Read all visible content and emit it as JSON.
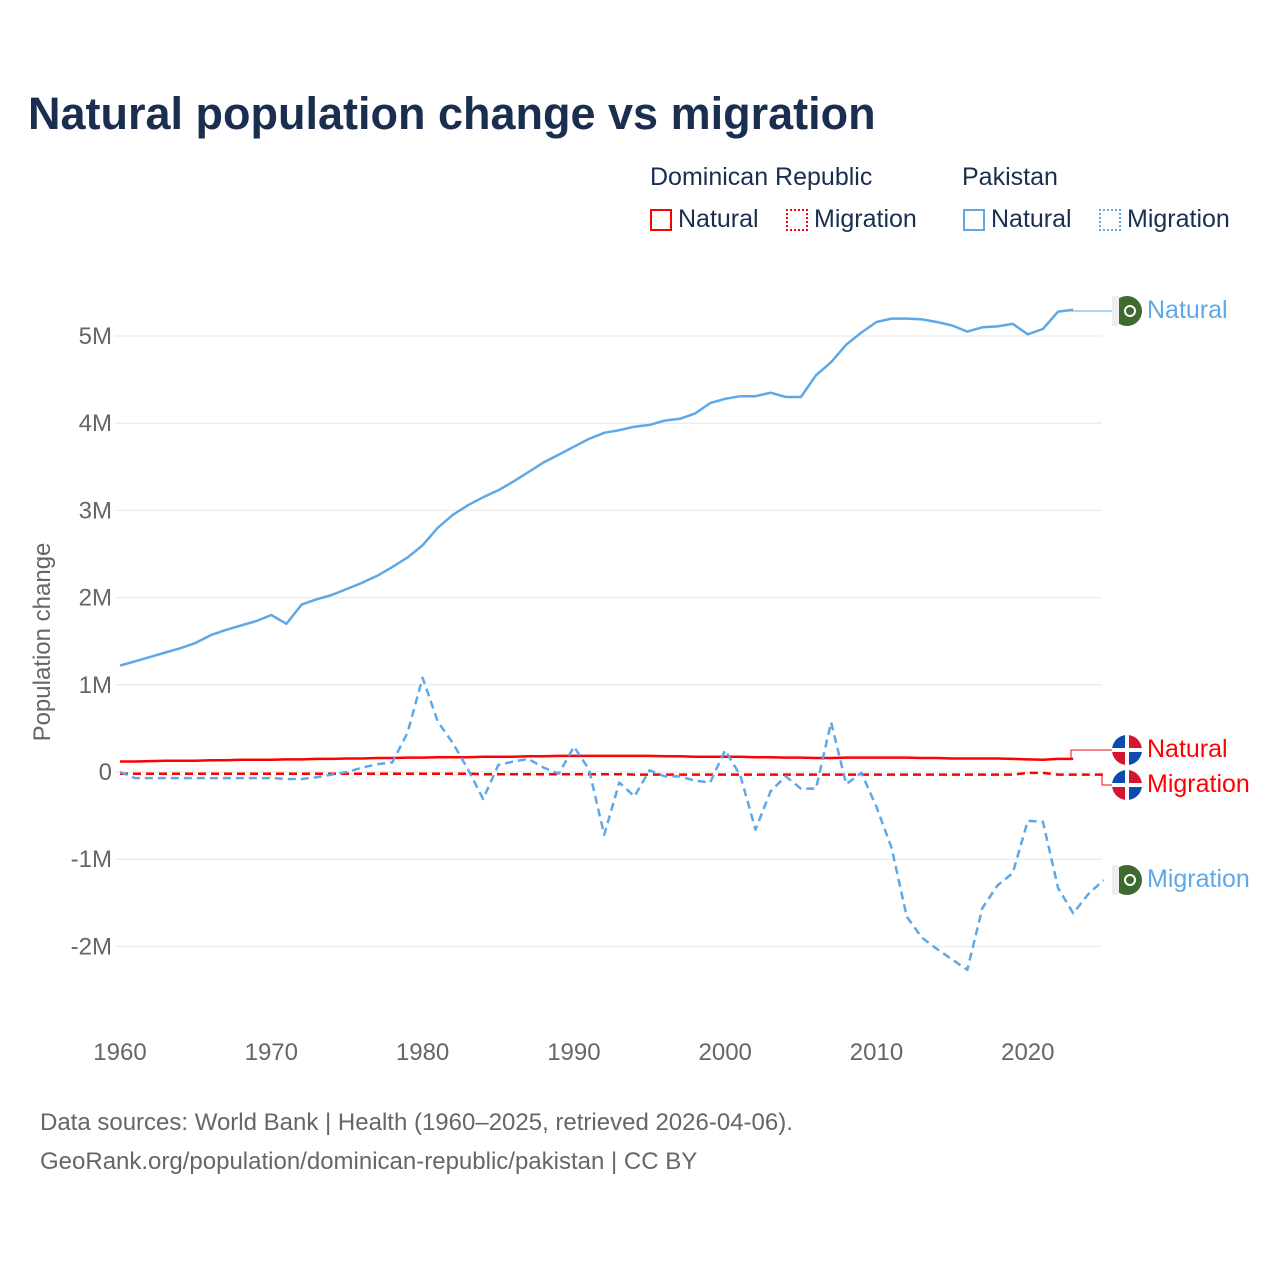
{
  "chart_data": {
    "type": "line",
    "title": "Natural population change vs migration",
    "ylabel": "Population change",
    "xlabel": "",
    "ylim": [
      -2.9,
      5.8
    ],
    "xlim": [
      1960,
      2025
    ],
    "y_unit": "millions",
    "yticks": [
      {
        "v": 5,
        "label": "5M"
      },
      {
        "v": 4,
        "label": "4M"
      },
      {
        "v": 3,
        "label": "3M"
      },
      {
        "v": 2,
        "label": "2M"
      },
      {
        "v": 1,
        "label": "1M"
      },
      {
        "v": 0,
        "label": "0"
      },
      {
        "v": -1,
        "label": "-1M"
      },
      {
        "v": -2,
        "label": "-2M"
      }
    ],
    "xticks": [
      {
        "v": 1960,
        "label": "1960"
      },
      {
        "v": 1970,
        "label": "1970"
      },
      {
        "v": 1980,
        "label": "1980"
      },
      {
        "v": 1990,
        "label": "1990"
      },
      {
        "v": 2000,
        "label": "2000"
      },
      {
        "v": 2010,
        "label": "2010"
      },
      {
        "v": 2020,
        "label": "2020"
      }
    ],
    "grid": true,
    "legend": {
      "groups": [
        {
          "name": "Dominican Republic",
          "items": [
            "Natural",
            "Migration"
          ]
        },
        {
          "name": "Pakistan",
          "items": [
            "Natural",
            "Migration"
          ]
        }
      ],
      "placement": "top-right"
    },
    "series": [
      {
        "name": "Pakistan Natural",
        "country": "Pakistan",
        "kind": "Natural",
        "color": "#5ea8e8",
        "dash": false,
        "start": 1960,
        "values": [
          1.22,
          1.27,
          1.32,
          1.37,
          1.42,
          1.48,
          1.57,
          1.63,
          1.68,
          1.73,
          1.8,
          1.7,
          1.92,
          1.98,
          2.03,
          2.1,
          2.17,
          2.25,
          2.35,
          2.46,
          2.6,
          2.8,
          2.95,
          3.06,
          3.15,
          3.23,
          3.33,
          3.44,
          3.55,
          3.64,
          3.73,
          3.82,
          3.89,
          3.92,
          3.96,
          3.98,
          4.03,
          4.05,
          4.11,
          4.23,
          4.28,
          4.31,
          4.31,
          4.35,
          4.3,
          4.3,
          4.55,
          4.7,
          4.9,
          5.04,
          5.16,
          5.2,
          5.2,
          5.19,
          5.16,
          5.12,
          5.05,
          5.1,
          5.11,
          5.14,
          5.02,
          5.08,
          5.28,
          5.3
        ]
      },
      {
        "name": "Pakistan Migration",
        "country": "Pakistan",
        "kind": "Migration",
        "color": "#5ea8e8",
        "dash": true,
        "start": 1960,
        "values": [
          0,
          -0.07,
          -0.07,
          -0.07,
          -0.07,
          -0.07,
          -0.07,
          -0.07,
          -0.07,
          -0.07,
          -0.07,
          -0.08,
          -0.08,
          -0.06,
          -0.03,
          0,
          0.05,
          0.09,
          0.11,
          0.45,
          1.08,
          0.58,
          0.33,
          0.03,
          -0.31,
          0.08,
          0.12,
          0.15,
          0.05,
          -0.02,
          0.29,
          0.03,
          -0.72,
          -0.12,
          -0.28,
          0.02,
          -0.05,
          -0.05,
          -0.1,
          -0.12,
          0.25,
          -0.04,
          -0.66,
          -0.22,
          -0.05,
          -0.19,
          -0.19,
          0.57,
          -0.14,
          -0.01,
          -0.4,
          -0.87,
          -1.66,
          -1.9,
          -2.03,
          -2.15,
          -2.27,
          -1.56,
          -1.3,
          -1.16,
          -0.56,
          -0.57,
          -1.33,
          -1.62,
          -1.4,
          -1.24
        ]
      },
      {
        "name": "Dominican Republic Natural",
        "country": "Dominican Republic",
        "kind": "Natural",
        "color": "#ff0000",
        "dash": false,
        "start": 1960,
        "values": [
          0.12,
          0.12,
          0.125,
          0.13,
          0.13,
          0.13,
          0.135,
          0.135,
          0.14,
          0.14,
          0.14,
          0.145,
          0.145,
          0.15,
          0.15,
          0.155,
          0.155,
          0.16,
          0.16,
          0.165,
          0.165,
          0.17,
          0.17,
          0.17,
          0.175,
          0.175,
          0.175,
          0.18,
          0.18,
          0.185,
          0.185,
          0.185,
          0.185,
          0.185,
          0.185,
          0.185,
          0.18,
          0.18,
          0.175,
          0.175,
          0.175,
          0.175,
          0.17,
          0.17,
          0.165,
          0.165,
          0.16,
          0.16,
          0.165,
          0.165,
          0.165,
          0.165,
          0.165,
          0.16,
          0.16,
          0.155,
          0.155,
          0.155,
          0.155,
          0.15,
          0.145,
          0.14,
          0.15,
          0.15
        ]
      },
      {
        "name": "Dominican Republic Migration",
        "country": "Dominican Republic",
        "kind": "Migration",
        "color": "#ff0000",
        "dash": true,
        "start": 1960,
        "values": [
          -0.02,
          -0.02,
          -0.02,
          -0.02,
          -0.02,
          -0.02,
          -0.02,
          -0.02,
          -0.02,
          -0.02,
          -0.02,
          -0.02,
          -0.02,
          -0.02,
          -0.02,
          -0.02,
          -0.02,
          -0.02,
          -0.02,
          -0.02,
          -0.02,
          -0.02,
          -0.02,
          -0.02,
          -0.025,
          -0.025,
          -0.025,
          -0.025,
          -0.025,
          -0.025,
          -0.025,
          -0.025,
          -0.025,
          -0.025,
          -0.03,
          -0.03,
          -0.03,
          -0.03,
          -0.03,
          -0.03,
          -0.03,
          -0.03,
          -0.03,
          -0.03,
          -0.03,
          -0.03,
          -0.03,
          -0.03,
          -0.03,
          -0.03,
          -0.03,
          -0.03,
          -0.03,
          -0.03,
          -0.03,
          -0.03,
          -0.03,
          -0.03,
          -0.03,
          -0.03,
          -0.01,
          -0.01,
          -0.03,
          -0.03,
          -0.03,
          -0.03
        ]
      }
    ]
  },
  "legend_labels": {
    "dr": "Dominican Republic",
    "pk": "Pakistan",
    "natural": "Natural",
    "migration": "Migration"
  },
  "end_labels": {
    "pk_natural": "Natural",
    "dr_natural": "Natural",
    "dr_migration": "Migration",
    "pk_migration": "Migration"
  },
  "footer": {
    "line1": "Data sources: World Bank | Health (1960–2025, retrieved 2026-04-06).",
    "line2": "GeoRank.org/population/dominican-republic/pakistan | CC BY"
  }
}
